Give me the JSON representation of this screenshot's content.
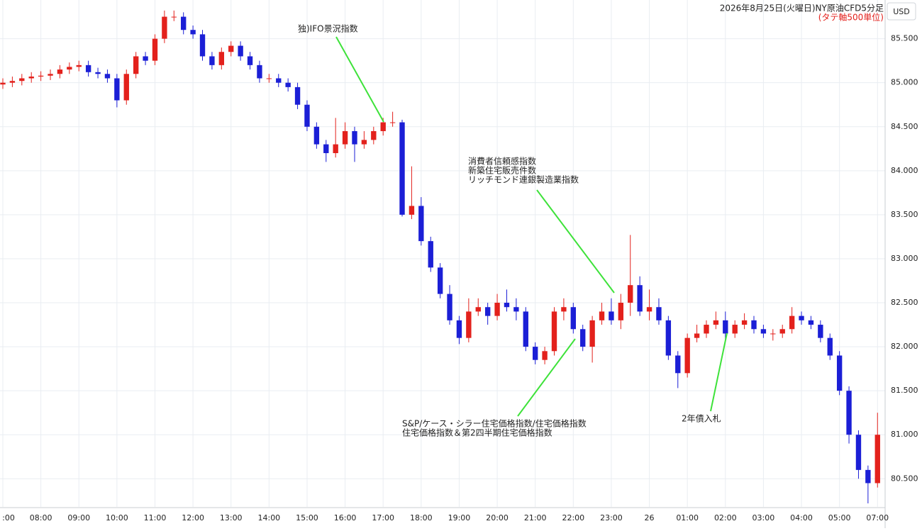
{
  "chart_data": {
    "type": "candlestick",
    "title": "2026年8月25日(火曜日)NY原油CFD5分足",
    "subtitle": "(タテ軸500単位)",
    "currency": "USD",
    "up_color": "#e3211c",
    "down_color": "#1b1fd6",
    "annotation_color": "#3ee23a",
    "grid": true,
    "xlim": [
      7,
      30.2
    ],
    "xticks": [
      {
        "value": 7,
        "label": ":00"
      },
      {
        "value": 8,
        "label": "08:00"
      },
      {
        "value": 9,
        "label": "09:00"
      },
      {
        "value": 10,
        "label": "10:00"
      },
      {
        "value": 11,
        "label": "11:00"
      },
      {
        "value": 12,
        "label": "12:00"
      },
      {
        "value": 13,
        "label": "13:00"
      },
      {
        "value": 14,
        "label": "14:00"
      },
      {
        "value": 15,
        "label": "15:00"
      },
      {
        "value": 16,
        "label": "16:00"
      },
      {
        "value": 17,
        "label": "17:00"
      },
      {
        "value": 18,
        "label": "18:00"
      },
      {
        "value": 19,
        "label": "19:00"
      },
      {
        "value": 20,
        "label": "20:00"
      },
      {
        "value": 21,
        "label": "21:00"
      },
      {
        "value": 22,
        "label": "22:00"
      },
      {
        "value": 23,
        "label": "23:00"
      },
      {
        "value": 24,
        "label": "26"
      },
      {
        "value": 25,
        "label": "01:00"
      },
      {
        "value": 26,
        "label": "02:00"
      },
      {
        "value": 27,
        "label": "03:00"
      },
      {
        "value": 28,
        "label": "04:00"
      },
      {
        "value": 29,
        "label": "05:00"
      },
      {
        "value": 30,
        "label": "07:00"
      }
    ],
    "ylim": [
      80.18,
      85.94
    ],
    "yticks": [
      {
        "value": 80.5,
        "label": "80.500"
      },
      {
        "value": 81,
        "label": "81.000"
      },
      {
        "value": 81.5,
        "label": "81.500"
      },
      {
        "value": 82,
        "label": "82.000"
      },
      {
        "value": 82.5,
        "label": "82.500"
      },
      {
        "value": 83,
        "label": "83.000"
      },
      {
        "value": 83.5,
        "label": "83.500"
      },
      {
        "value": 84,
        "label": "84.000"
      },
      {
        "value": 84.5,
        "label": "84.500"
      },
      {
        "value": 85,
        "label": "85.000"
      },
      {
        "value": 85.5,
        "label": "85.500"
      }
    ],
    "x": [
      7,
      7.25,
      7.5,
      7.75,
      8,
      8.25,
      8.5,
      8.75,
      9,
      9.25,
      9.5,
      9.75,
      10,
      10.25,
      10.5,
      10.75,
      11,
      11.25,
      11.5,
      11.75,
      12,
      12.25,
      12.5,
      12.75,
      13,
      13.25,
      13.5,
      13.75,
      14,
      14.25,
      14.5,
      14.75,
      15,
      15.25,
      15.5,
      15.75,
      16,
      16.25,
      16.5,
      16.75,
      17,
      17.25,
      17.5,
      17.75,
      18,
      18.25,
      18.5,
      18.75,
      19,
      19.25,
      19.5,
      19.75,
      20,
      20.25,
      20.5,
      20.75,
      21,
      21.25,
      21.5,
      21.75,
      22,
      22.25,
      22.5,
      22.75,
      23,
      23.25,
      23.5,
      23.75,
      24,
      24.25,
      24.5,
      24.75,
      25,
      25.25,
      25.5,
      25.75,
      26,
      26.25,
      26.5,
      26.75,
      27,
      27.25,
      27.5,
      27.75,
      28,
      28.25,
      28.5,
      28.75,
      29,
      29.25,
      29.5,
      29.75,
      30
    ],
    "open": [
      84.98,
      85.0,
      85.02,
      85.05,
      85.07,
      85.08,
      85.1,
      85.15,
      85.18,
      85.2,
      85.12,
      85.1,
      85.05,
      84.8,
      85.1,
      85.3,
      85.25,
      85.5,
      85.75,
      85.75,
      85.6,
      85.55,
      85.3,
      85.2,
      85.35,
      85.42,
      85.3,
      85.2,
      85.05,
      85.05,
      85.0,
      84.95,
      84.75,
      84.5,
      84.3,
      84.2,
      84.3,
      84.45,
      84.3,
      84.35,
      84.45,
      84.55,
      84.55,
      83.5,
      83.6,
      83.2,
      82.9,
      82.6,
      82.3,
      82.1,
      82.4,
      82.45,
      82.35,
      82.5,
      82.45,
      82.4,
      82.0,
      81.85,
      81.95,
      82.4,
      82.45,
      82.2,
      82.0,
      82.3,
      82.4,
      82.3,
      82.5,
      82.7,
      82.4,
      82.45,
      82.3,
      81.9,
      81.7,
      82.1,
      82.15,
      82.25,
      82.3,
      82.15,
      82.25,
      82.3,
      82.2,
      82.15,
      82.15,
      82.2,
      82.35,
      82.3,
      82.25,
      82.1,
      81.9,
      81.5,
      81.0,
      80.6,
      80.45
    ],
    "high": [
      85.05,
      85.07,
      85.1,
      85.12,
      85.13,
      85.15,
      85.2,
      85.23,
      85.25,
      85.25,
      85.17,
      85.15,
      85.1,
      85.15,
      85.35,
      85.35,
      85.55,
      85.82,
      85.82,
      85.8,
      85.65,
      85.6,
      85.35,
      85.4,
      85.47,
      85.47,
      85.35,
      85.25,
      85.1,
      85.1,
      85.05,
      85.0,
      84.8,
      84.55,
      84.35,
      84.6,
      84.55,
      84.5,
      84.45,
      84.5,
      84.6,
      84.67,
      84.58,
      84.05,
      83.7,
      83.25,
      82.95,
      82.7,
      82.35,
      82.55,
      82.55,
      82.5,
      82.6,
      82.65,
      82.55,
      82.45,
      82.05,
      82.0,
      82.45,
      82.55,
      82.5,
      82.25,
      82.35,
      82.5,
      82.55,
      82.6,
      83.27,
      82.8,
      82.65,
      82.55,
      82.35,
      81.95,
      82.15,
      82.25,
      82.3,
      82.4,
      82.4,
      82.3,
      82.38,
      82.35,
      82.25,
      82.2,
      82.25,
      82.45,
      82.4,
      82.35,
      82.3,
      82.15,
      81.95,
      81.55,
      81.05,
      80.65,
      81.25
    ],
    "low": [
      84.93,
      84.95,
      84.97,
      85.0,
      85.02,
      85.03,
      85.05,
      85.1,
      85.13,
      85.07,
      85.05,
      85.0,
      84.72,
      84.75,
      85.05,
      85.2,
      85.2,
      85.45,
      85.7,
      85.55,
      85.5,
      85.25,
      85.15,
      85.15,
      85.3,
      85.25,
      85.15,
      85.0,
      85.0,
      84.95,
      84.9,
      84.7,
      84.45,
      84.25,
      84.1,
      84.15,
      84.25,
      84.1,
      84.25,
      84.3,
      84.4,
      84.5,
      83.48,
      83.45,
      83.15,
      82.85,
      82.55,
      82.25,
      82.03,
      82.05,
      82.35,
      82.25,
      82.3,
      82.4,
      82.3,
      81.95,
      81.8,
      81.8,
      81.9,
      82.3,
      82.15,
      81.95,
      81.82,
      82.25,
      82.25,
      82.2,
      82.35,
      82.35,
      82.3,
      82.25,
      81.85,
      81.53,
      81.65,
      82.05,
      82.1,
      82.2,
      82.08,
      82.1,
      82.2,
      82.15,
      82.1,
      82.07,
      82.1,
      82.15,
      82.25,
      82.2,
      82.05,
      81.85,
      81.45,
      80.9,
      80.5,
      80.22,
      80.4
    ],
    "close": [
      85.0,
      85.02,
      85.05,
      85.07,
      85.08,
      85.1,
      85.15,
      85.18,
      85.2,
      85.12,
      85.1,
      85.05,
      84.8,
      85.1,
      85.3,
      85.25,
      85.5,
      85.75,
      85.75,
      85.6,
      85.55,
      85.3,
      85.2,
      85.35,
      85.42,
      85.3,
      85.2,
      85.05,
      85.05,
      85.0,
      84.95,
      84.75,
      84.5,
      84.3,
      84.2,
      84.3,
      84.45,
      84.3,
      84.35,
      84.45,
      84.55,
      84.55,
      83.5,
      83.6,
      83.2,
      82.9,
      82.6,
      82.3,
      82.1,
      82.4,
      82.45,
      82.35,
      82.5,
      82.45,
      82.4,
      82.0,
      81.85,
      81.95,
      82.4,
      82.45,
      82.2,
      82.0,
      82.3,
      82.4,
      82.3,
      82.5,
      82.7,
      82.4,
      82.45,
      82.3,
      81.9,
      81.7,
      82.1,
      82.15,
      82.25,
      82.3,
      82.15,
      82.25,
      82.3,
      82.2,
      82.15,
      82.15,
      82.2,
      82.35,
      82.3,
      82.25,
      82.1,
      81.9,
      81.5,
      81.0,
      80.6,
      80.45,
      81.0
    ],
    "annotations": [
      {
        "lines": [
          "独)IFO景況指数"
        ]
      },
      {
        "lines": [
          "消費者信頼感指数",
          "新築住宅販売件数",
          "リッチモンド連銀製造業指数"
        ]
      },
      {
        "lines": [
          "S&P/ケース・シラー住宅価格指数/住宅価格指数",
          "住宅価格指数＆第2四半期住宅価格指数"
        ]
      },
      {
        "lines": [
          "2年債入札"
        ]
      }
    ]
  }
}
